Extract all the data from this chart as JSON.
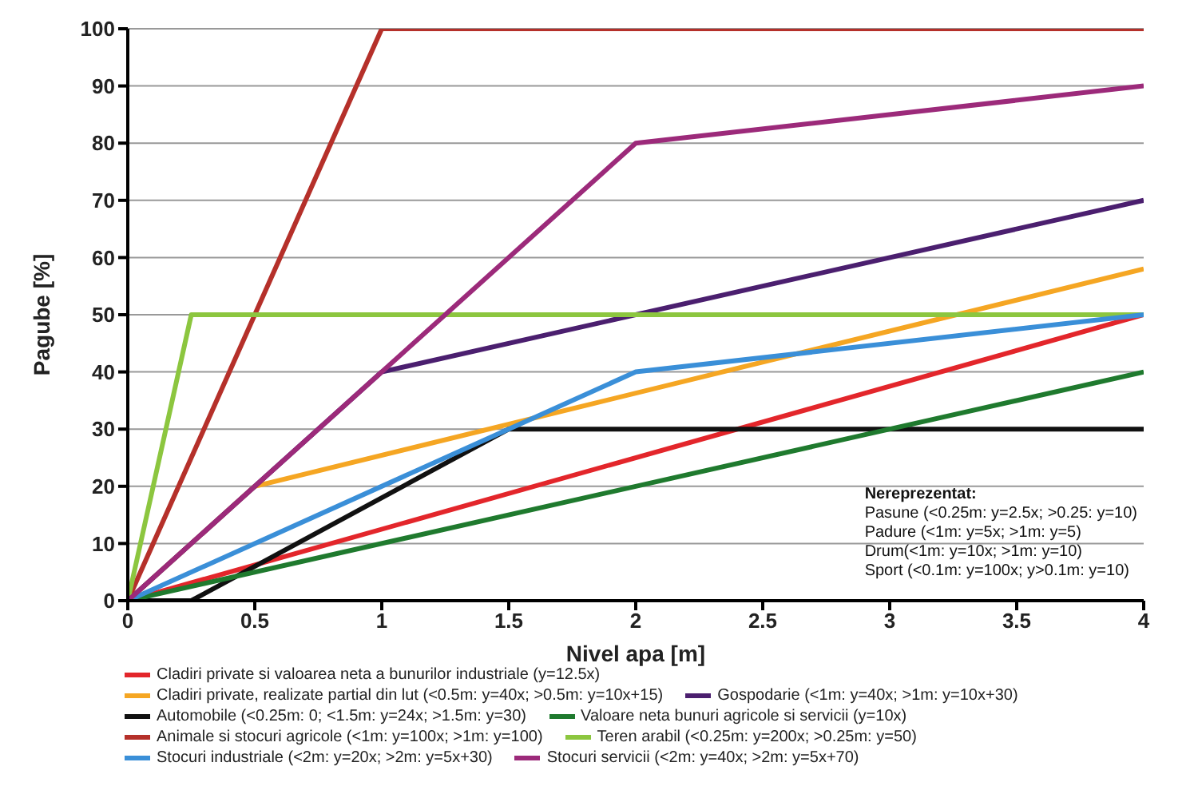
{
  "chart_data": {
    "type": "line",
    "xlabel": "Nivel apa [m]",
    "ylabel": "Pagube [%]",
    "xlim": [
      0,
      4
    ],
    "xticks": [
      0,
      0.5,
      1,
      1.5,
      2,
      2.5,
      3,
      3.5,
      4
    ],
    "ylim": [
      0,
      100
    ],
    "yticks": [
      0,
      10,
      20,
      30,
      40,
      50,
      60,
      70,
      80,
      90,
      100
    ],
    "grid": "y",
    "legend": "bottom",
    "marker": "none",
    "line_style": "solid",
    "series": [
      {
        "name": "Cladiri private si valoarea neta a bunurilor industriale (y=12.5x)",
        "color": "#e3262b",
        "x": [
          0,
          4
        ],
        "values": [
          0,
          50
        ]
      },
      {
        "name": "Cladiri private, realizate partial din lut (<0.5m: y=40x; >0.5m: y=10x+15)",
        "color": "#f5a623",
        "x": [
          0,
          0.5,
          4
        ],
        "values": [
          0,
          20,
          58
        ]
      },
      {
        "name": "Gospodarie (<1m: y=40x; >1m: y=10x+30)",
        "color": "#4b1f6f",
        "x": [
          0,
          1,
          4
        ],
        "values": [
          0,
          40,
          70
        ]
      },
      {
        "name": "Automobile (<0.25m: 0; <1.5m: y=24x; >1.5m: y=30)",
        "color": "#111111",
        "x": [
          0,
          0.25,
          1.5,
          4
        ],
        "values": [
          0,
          0,
          30,
          30
        ]
      },
      {
        "name": "Valoare neta bunuri agricole si servicii (y=10x)",
        "color": "#1f7a2e",
        "x": [
          0,
          4
        ],
        "values": [
          0,
          40
        ]
      },
      {
        "name": "Animale si stocuri agricole (<1m: y=100x; >1m: y=100)",
        "color": "#b5302a",
        "x": [
          0,
          1,
          4
        ],
        "values": [
          0,
          100,
          100
        ]
      },
      {
        "name": "Teren arabil  (<0.25m: y=200x; >0.25m: y=50)",
        "color": "#8cc63f",
        "x": [
          0,
          0.25,
          4
        ],
        "values": [
          0,
          50,
          50
        ]
      },
      {
        "name": "Stocuri industriale (<2m: y=20x; >2m: y=5x+30)",
        "color": "#3a8fd8",
        "x": [
          0,
          2,
          4
        ],
        "values": [
          0,
          40,
          50
        ]
      },
      {
        "name": "Stocuri servicii (<2m: y=40x; >2m: y=5x+70)",
        "color": "#9c2a7a",
        "x": [
          0,
          2,
          4
        ],
        "values": [
          0,
          80,
          90
        ]
      }
    ],
    "annotations": [
      "Nereprezentat:",
      "Pasune (<0.25m: y=2.5x; >0.25: y=10)",
      "Padure (<1m: y=5x; >1m: y=5)",
      "Drum(<1m: y=10x; >1m: y=10)",
      "Sport (<0.1m: y=100x; y>0.1m: y=10)"
    ]
  }
}
